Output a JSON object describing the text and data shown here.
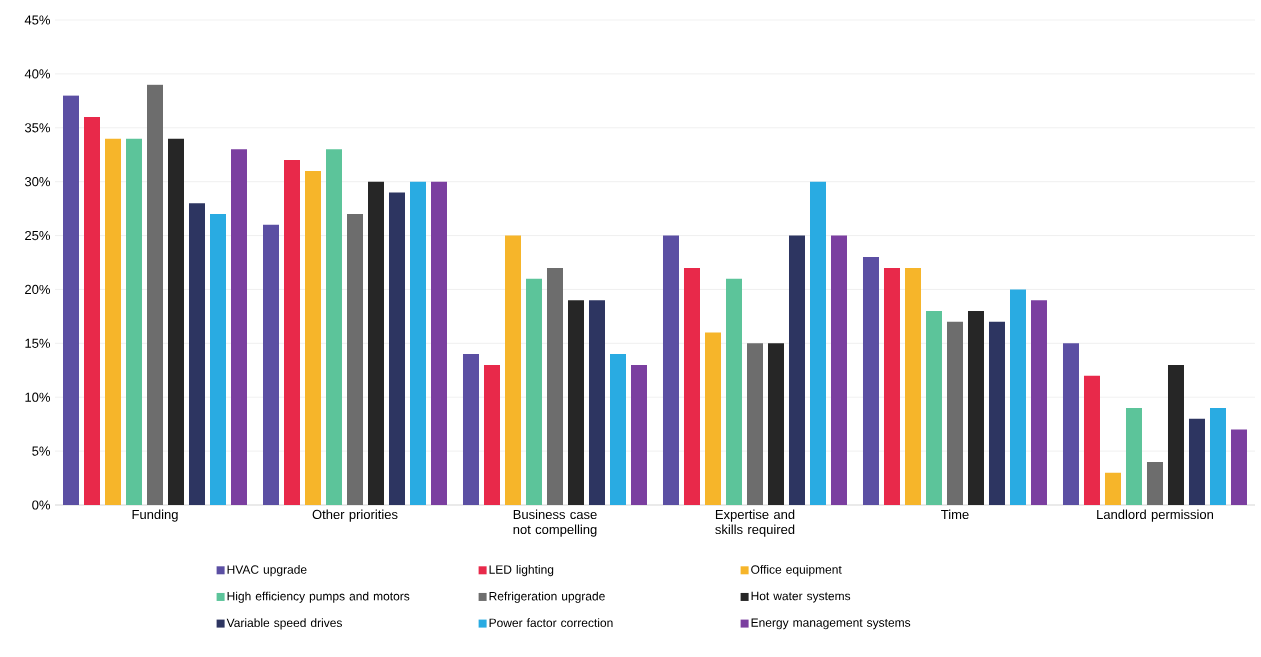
{
  "chart_data": {
    "type": "bar",
    "categories": [
      "Funding",
      "Other priorities",
      "Business case not compelling",
      "Expertise and skills required",
      "Time",
      "Landlord permission"
    ],
    "series": [
      {
        "name": "HVAC upgrade",
        "color": "#5b4fa3",
        "values": [
          38,
          26,
          14,
          25,
          23,
          15
        ]
      },
      {
        "name": "LED lighting",
        "color": "#e8294a",
        "values": [
          36,
          32,
          13,
          22,
          22,
          12
        ]
      },
      {
        "name": "Office equipment",
        "color": "#f6b52a",
        "values": [
          34,
          31,
          25,
          16,
          22,
          3
        ]
      },
      {
        "name": "High efficiency pumps and motors",
        "color": "#5cc49a",
        "values": [
          34,
          33,
          21,
          21,
          18,
          9
        ]
      },
      {
        "name": "Refrigeration upgrade",
        "color": "#6d6d6d",
        "values": [
          39,
          27,
          22,
          15,
          17,
          4
        ]
      },
      {
        "name": "Hot water systems",
        "color": "#262626",
        "values": [
          34,
          30,
          19,
          15,
          18,
          13
        ]
      },
      {
        "name": "Variable speed drives",
        "color": "#2d3561",
        "values": [
          28,
          29,
          19,
          25,
          17,
          8
        ]
      },
      {
        "name": "Power factor correction",
        "color": "#29abe2",
        "values": [
          27,
          30,
          14,
          30,
          20,
          9
        ]
      },
      {
        "name": "Energy management systems",
        "color": "#7b3fa0",
        "values": [
          33,
          30,
          13,
          25,
          19,
          7
        ]
      }
    ],
    "ylim": [
      0,
      45
    ],
    "yticks": [
      {
        "value": 0,
        "label": "0%"
      },
      {
        "value": 5,
        "label": "5%"
      },
      {
        "value": 10,
        "label": "10%"
      },
      {
        "value": 15,
        "label": "15%"
      },
      {
        "value": 20,
        "label": "20%"
      },
      {
        "value": 25,
        "label": "25%"
      },
      {
        "value": 30,
        "label": "30%"
      },
      {
        "value": 35,
        "label": "35%"
      },
      {
        "value": 40,
        "label": "40%"
      },
      {
        "value": 45,
        "label": "45%"
      }
    ],
    "grid": "y",
    "legend": "bottom"
  }
}
